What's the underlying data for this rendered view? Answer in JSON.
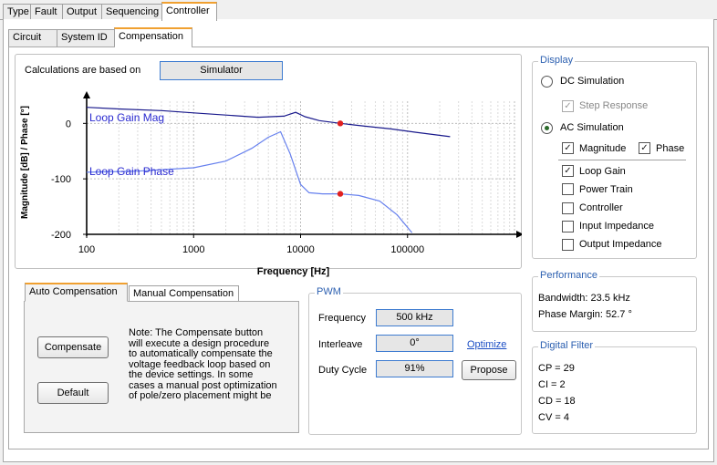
{
  "top_tabs": [
    "Type",
    "Fault",
    "Output",
    "Sequencing",
    "Controller"
  ],
  "sub_tabs": [
    "Circuit",
    "System ID",
    "Compensation"
  ],
  "calc": {
    "label": "Calculations are based on",
    "value": "Simulator"
  },
  "display": {
    "title": "Display",
    "dc_sim": "DC Simulation",
    "step_response": "Step Response",
    "ac_sim": "AC Simulation",
    "magnitude": "Magnitude",
    "phase": "Phase",
    "loop_gain": "Loop Gain",
    "power_train": "Power Train",
    "controller": "Controller",
    "input_impedance": "Input Impedance",
    "output_impedance": "Output Impedance",
    "check_mark": "✓"
  },
  "performance": {
    "title": "Performance",
    "bandwidth": "Bandwidth: 23.5 kHz",
    "phase_margin": "Phase Margin: 52.7 °"
  },
  "digital_filter": {
    "title": "Digital Filter",
    "cp": "CP = 29",
    "ci": "CI = 2",
    "cd": "CD = 18",
    "cv": "CV = 4"
  },
  "comp_tabs": [
    "Auto Compensation",
    "Manual Compensation"
  ],
  "compensate_button": "Compensate",
  "default_button": "Default",
  "note": [
    "Note: The Compensate button",
    "will execute a design procedure",
    "to  automatically compensate the",
    "voltage feedback loop based on",
    "the device settings. In some",
    "cases a manual post optimization",
    "of pole/zero placement might be"
  ],
  "pwm": {
    "title": "PWM",
    "frequency_label": "Frequency",
    "frequency_value": "500 kHz",
    "interleave_label": "Interleave",
    "interleave_value": "0°",
    "duty_label": "Duty Cycle",
    "duty_value": "91%",
    "optimize": "Optimize",
    "propose": "Propose"
  },
  "chart_data": {
    "type": "line",
    "xlabel": "Frequency [Hz]",
    "ylabel": "Magnitude [dB] / Phase [°]",
    "x_scale": "log",
    "xlim": [
      100,
      1000000
    ],
    "ylim": [
      -200,
      40
    ],
    "x_ticks": [
      "100",
      "1000",
      "10000",
      "100000"
    ],
    "y_ticks": [
      "0",
      "-100",
      "-200"
    ],
    "grid": true,
    "series": [
      {
        "name": "Loop Gain Mag",
        "color": "#1a1a8c",
        "x": [
          100,
          200,
          500,
          1000,
          2000,
          4000,
          7000,
          9000,
          11000,
          15000,
          23500,
          40000,
          70000,
          120000,
          250000
        ],
        "y": [
          29,
          26,
          23,
          19,
          15,
          11,
          13,
          20,
          12,
          5,
          0,
          -5,
          -10,
          -16,
          -24
        ]
      },
      {
        "name": "Loop Gain Phase",
        "color": "#6680ee",
        "x": [
          100,
          300,
          1000,
          2000,
          3500,
          5000,
          6500,
          8000,
          10000,
          12000,
          16000,
          23500,
          35000,
          55000,
          80000,
          110000
        ],
        "y": [
          -88,
          -86,
          -80,
          -68,
          -45,
          -25,
          -15,
          -55,
          -110,
          -125,
          -127,
          -127,
          -130,
          -140,
          -165,
          -197
        ]
      }
    ],
    "markers": [
      {
        "x": 23500,
        "y": 0
      },
      {
        "x": 23500,
        "y": -127
      }
    ],
    "marker_color": "#e02020"
  }
}
